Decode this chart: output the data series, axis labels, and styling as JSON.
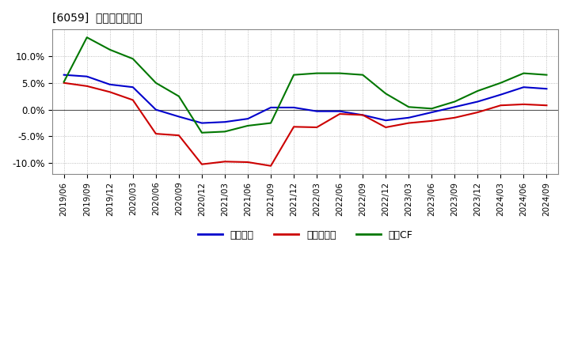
{
  "title": "[6059]  マージンの推移",
  "x_labels": [
    "2019/06",
    "2019/09",
    "2019/12",
    "2020/03",
    "2020/06",
    "2020/09",
    "2020/12",
    "2021/03",
    "2021/06",
    "2021/09",
    "2021/12",
    "2022/03",
    "2022/06",
    "2022/09",
    "2022/12",
    "2023/03",
    "2023/06",
    "2023/09",
    "2023/12",
    "2024/03",
    "2024/06",
    "2024/09"
  ],
  "series": [
    {
      "name": "経常利益",
      "color": "#0000cc",
      "values": [
        6.5,
        6.2,
        4.7,
        4.2,
        0.0,
        -1.3,
        -2.5,
        -2.3,
        -1.7,
        0.4,
        0.4,
        -0.3,
        -0.3,
        -1.0,
        -2.0,
        -1.5,
        -0.5,
        0.5,
        1.5,
        2.8,
        4.2,
        3.9
      ]
    },
    {
      "name": "当期純利益",
      "color": "#cc0000",
      "values": [
        5.0,
        4.4,
        3.3,
        1.8,
        -4.5,
        -4.8,
        -10.2,
        -9.7,
        -9.8,
        -10.5,
        -3.2,
        -3.3,
        -0.8,
        -1.0,
        -3.3,
        -2.5,
        -2.1,
        -1.5,
        -0.5,
        0.8,
        1.0,
        0.8
      ]
    },
    {
      "name": "営業CF",
      "color": "#007700",
      "values": [
        5.2,
        13.5,
        11.2,
        9.5,
        5.0,
        2.5,
        -4.3,
        -4.1,
        -3.0,
        -2.5,
        6.5,
        6.8,
        6.8,
        6.5,
        3.0,
        0.5,
        0.2,
        1.5,
        3.5,
        5.0,
        6.8,
        6.5
      ]
    }
  ],
  "ylim": [
    -12,
    15
  ],
  "yticks": [
    -10.0,
    -5.0,
    0.0,
    5.0,
    10.0
  ],
  "background_color": "#ffffff",
  "plot_bg_color": "#ffffff",
  "grid_color": "#999999",
  "legend_labels": [
    "経常利益",
    "当期純利益",
    "営業CF"
  ],
  "legend_colors": [
    "#0000cc",
    "#cc0000",
    "#007700"
  ]
}
